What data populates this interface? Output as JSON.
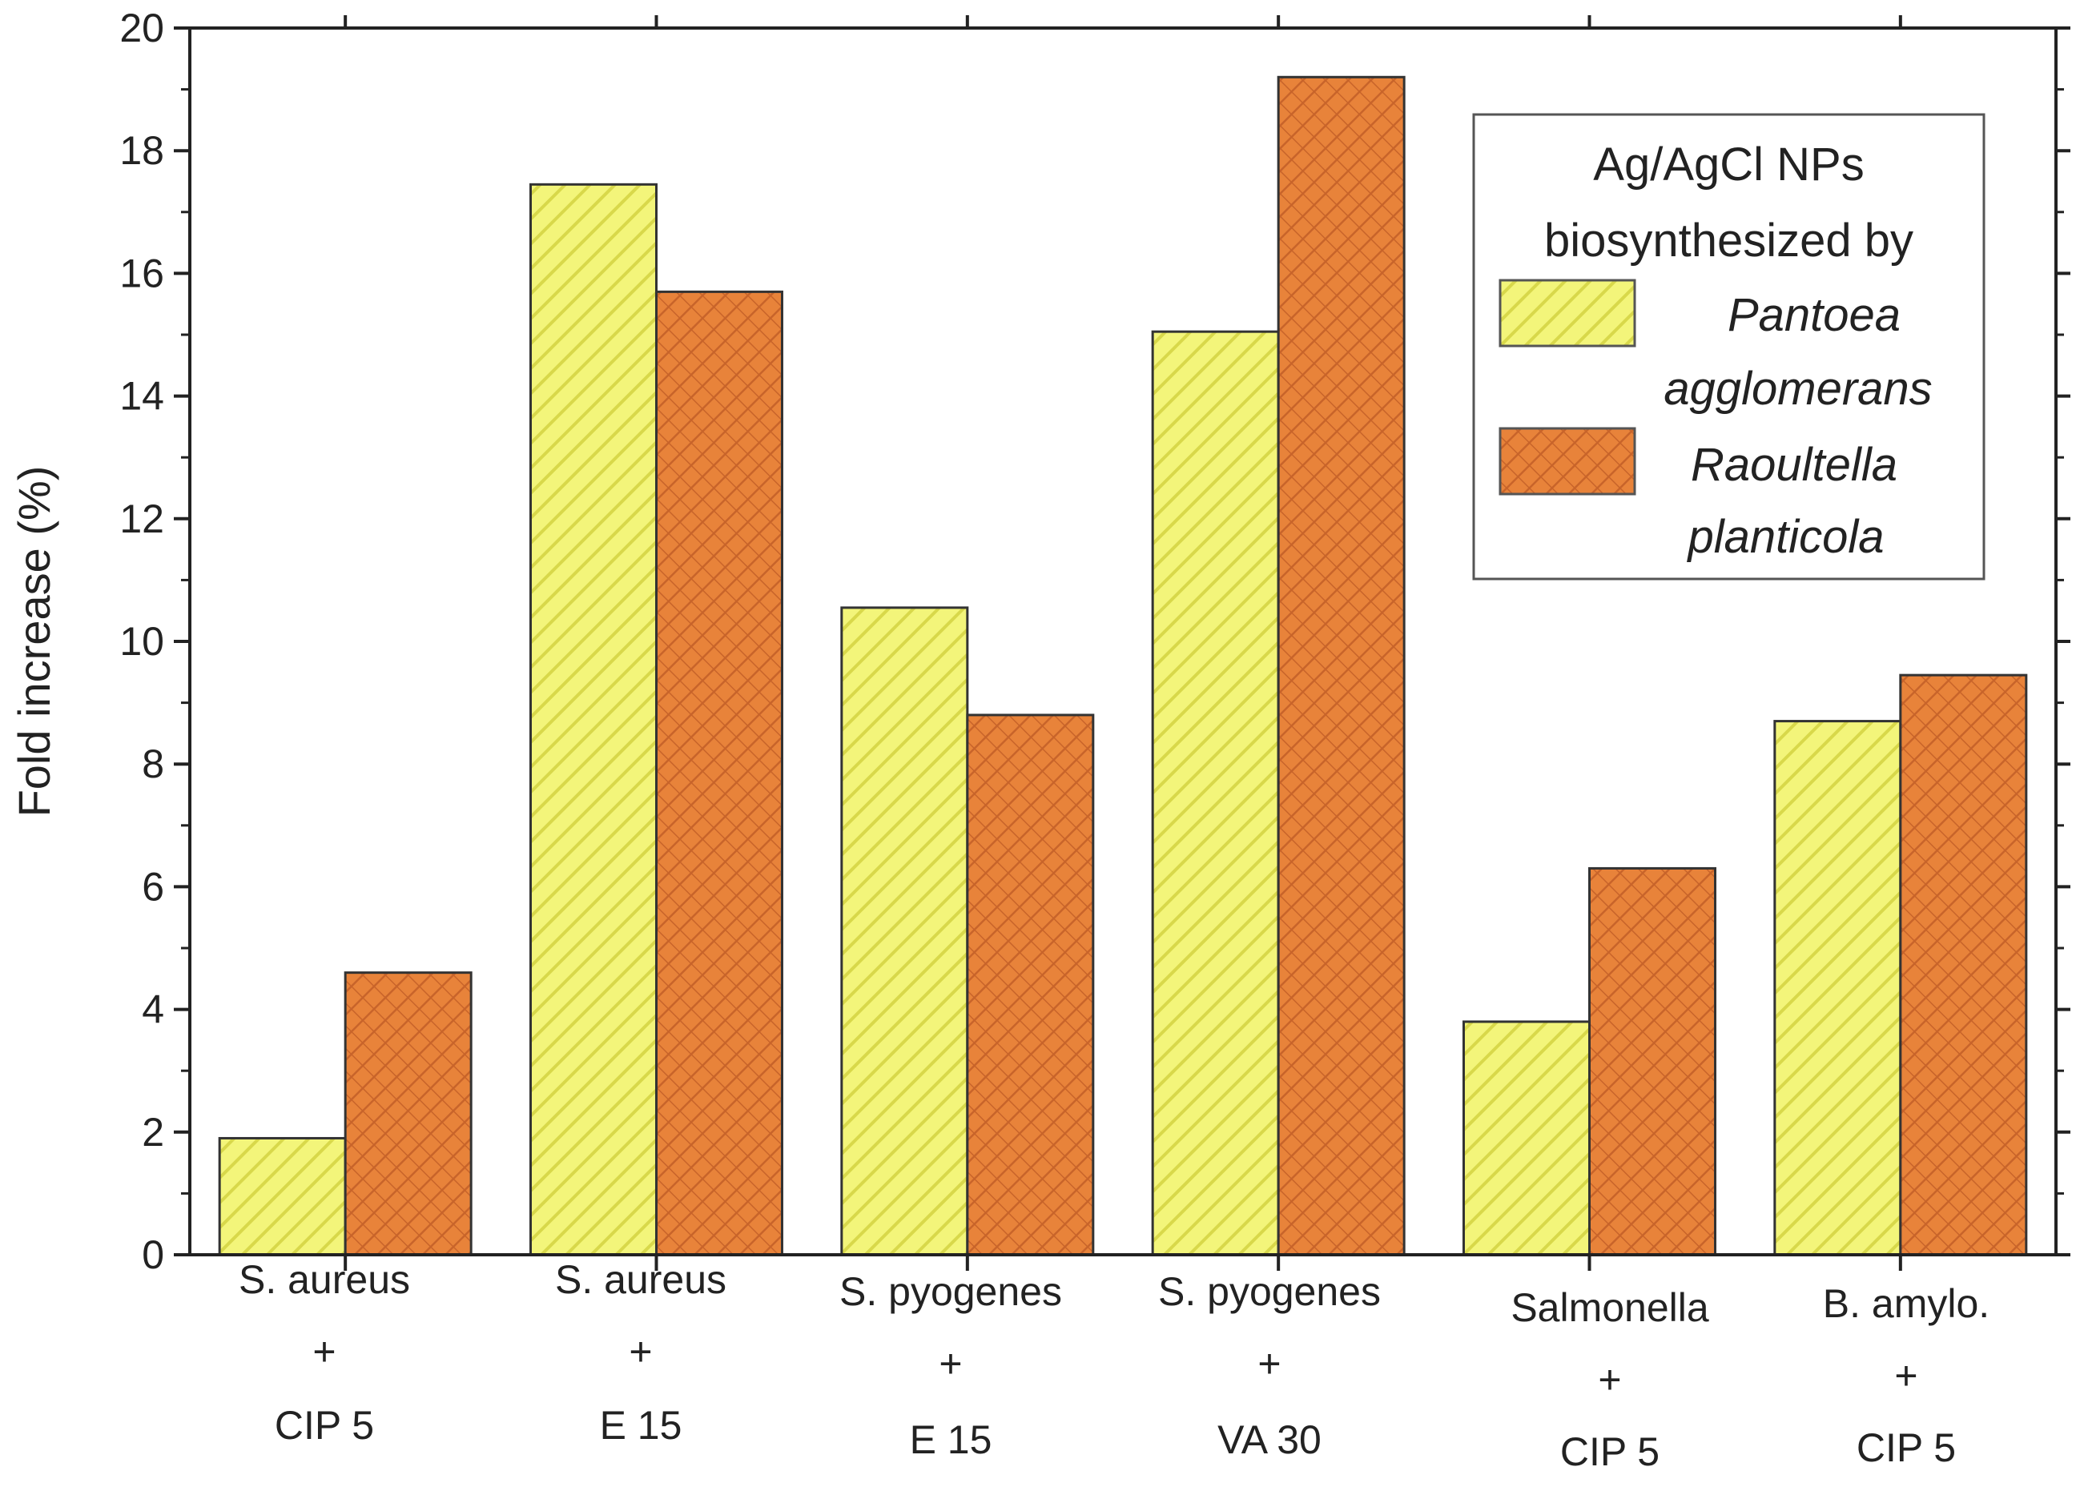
{
  "chart_data": {
    "type": "bar",
    "title": "",
    "xlabel": "",
    "ylabel": "Fold increase (%)",
    "ylim": [
      0,
      20
    ],
    "yticks": [
      0,
      2,
      4,
      6,
      8,
      10,
      12,
      14,
      16,
      18,
      20
    ],
    "grid": false,
    "legend_position": "top-right",
    "legend_title": [
      "Ag/AgCl NPs",
      "biosynthesized by"
    ],
    "categories": [
      [
        "S. aureus",
        "+",
        "CIP 5"
      ],
      [
        "S. aureus",
        "+",
        "E 15"
      ],
      [
        "S. pyogenes",
        "+",
        "E 15"
      ],
      [
        "S. pyogenes",
        "+",
        "VA 30"
      ],
      [
        "Salmonella",
        "+",
        "CIP 5"
      ],
      [
        "B. amylo.",
        "+",
        "CIP 5"
      ]
    ],
    "series": [
      {
        "name": [
          "Pantoea",
          "agglomerans"
        ],
        "color": "#f3f57a",
        "hatch_color": "#d8d84a",
        "values": [
          1.9,
          17.45,
          10.55,
          15.05,
          3.8,
          8.7
        ]
      },
      {
        "name": [
          "Raoultella",
          "planticola"
        ],
        "color": "#e8833a",
        "hatch_color": "#c8642a",
        "values": [
          4.6,
          15.7,
          8.8,
          19.2,
          6.3,
          9.45
        ]
      }
    ]
  }
}
